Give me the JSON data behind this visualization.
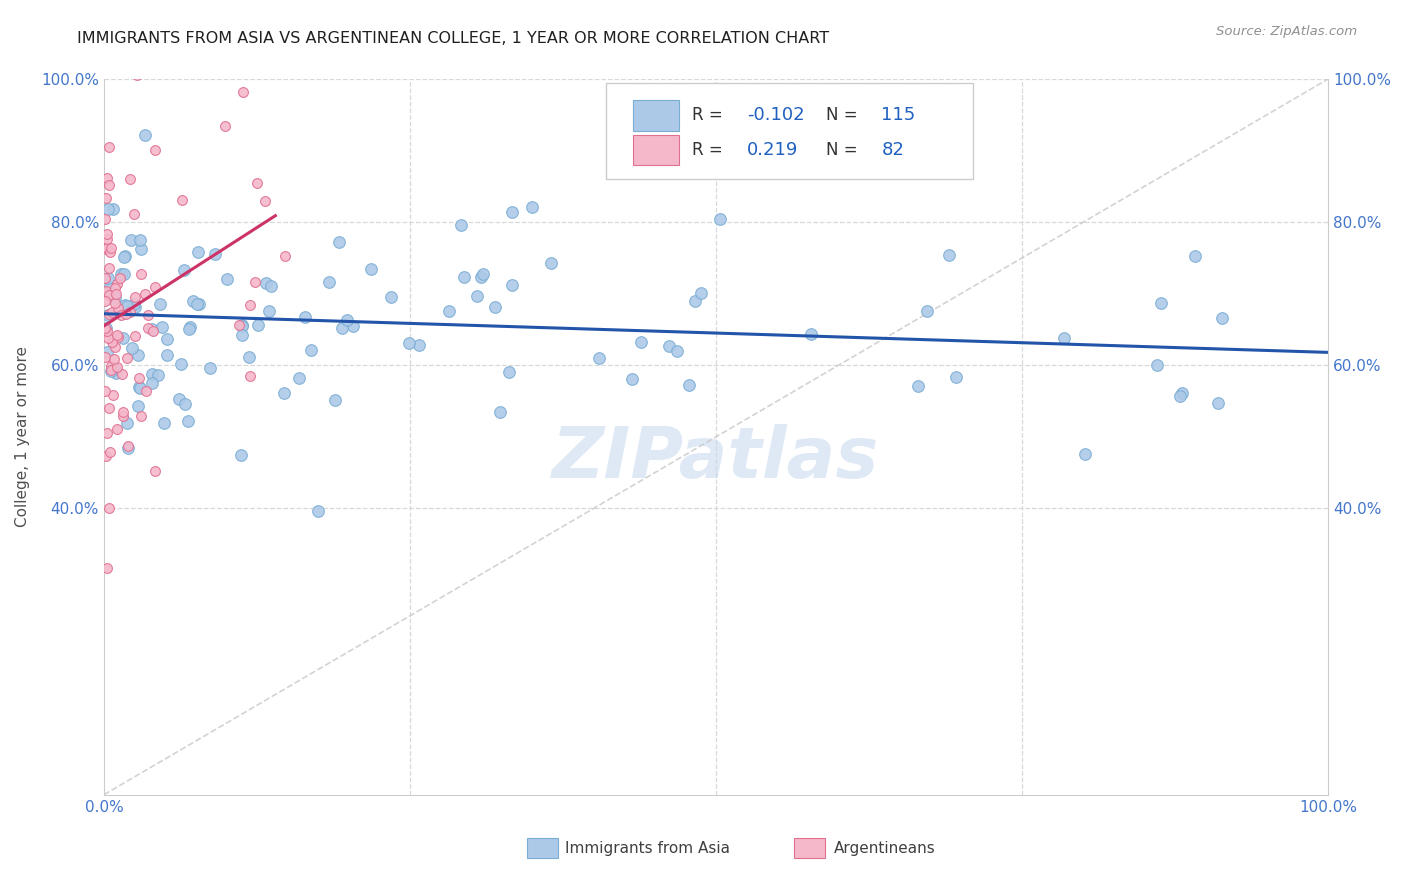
{
  "title": "IMMIGRANTS FROM ASIA VS ARGENTINEAN COLLEGE, 1 YEAR OR MORE CORRELATION CHART",
  "source": "Source: ZipAtlas.com",
  "ylabel": "College, 1 year or more",
  "xlim": [
    0.0,
    1.0
  ],
  "ylim": [
    0.0,
    1.0
  ],
  "blue_color": "#adc9e8",
  "blue_edge_color": "#7aadd4",
  "pink_color": "#f5b8cb",
  "pink_edge_color": "#e07090",
  "trend_blue": "#2255aa",
  "trend_pink": "#cc3366",
  "diag_color": "#c8c8c8",
  "R_blue": -0.102,
  "N_blue": 115,
  "R_pink": 0.219,
  "N_pink": 82,
  "legend_color": "#2060c0",
  "watermark": "ZIPatlas",
  "marker_size_blue": 70,
  "marker_size_pink": 50,
  "blue_trend_x0": 0.0,
  "blue_trend_y0": 0.672,
  "blue_trend_x1": 1.0,
  "blue_trend_y1": 0.618,
  "pink_trend_x0": 0.0,
  "pink_trend_y0": 0.655,
  "pink_trend_x1": 0.15,
  "pink_trend_y1": 0.82
}
